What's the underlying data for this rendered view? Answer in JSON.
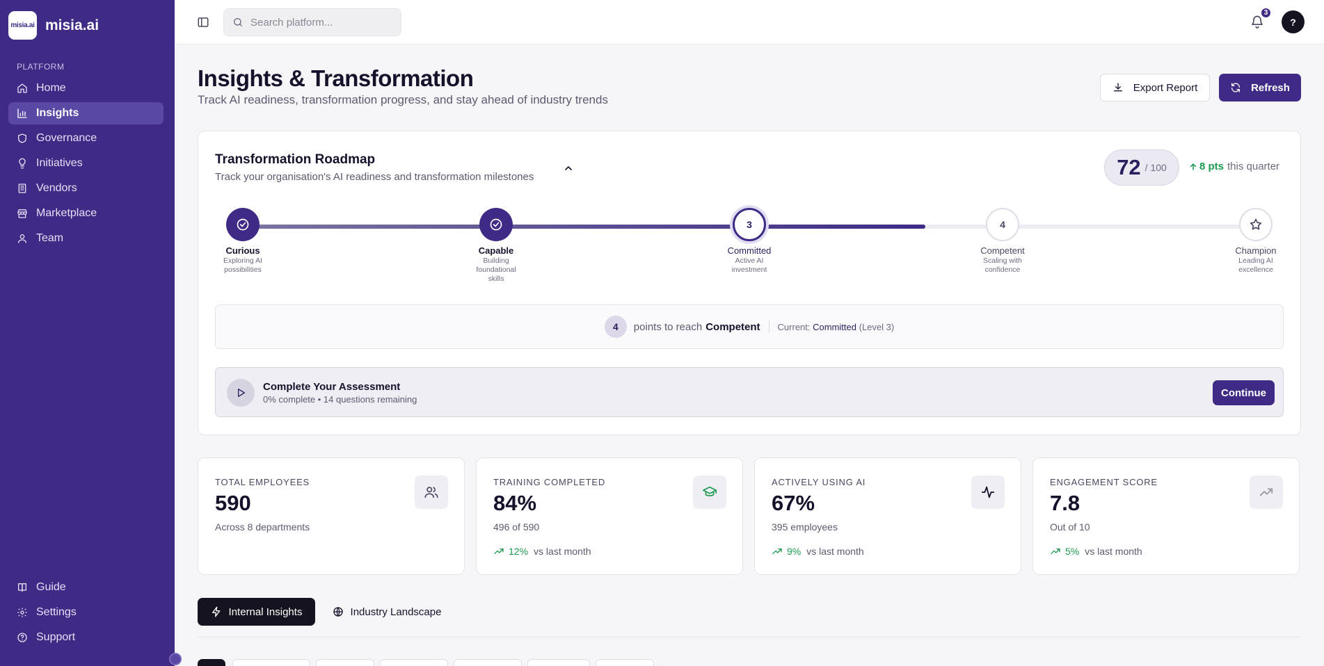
{
  "brand": {
    "logo_text": "misia.ai",
    "name": "misia.ai"
  },
  "sidebar": {
    "section": "PLATFORM",
    "items": [
      {
        "label": "Home",
        "icon": "home-icon"
      },
      {
        "label": "Insights",
        "icon": "bar-chart-icon",
        "active": true
      },
      {
        "label": "Governance",
        "icon": "shield-icon"
      },
      {
        "label": "Initiatives",
        "icon": "lightbulb-icon"
      },
      {
        "label": "Vendors",
        "icon": "building-icon"
      },
      {
        "label": "Marketplace",
        "icon": "store-icon"
      },
      {
        "label": "Team",
        "icon": "user-icon"
      }
    ],
    "bottom": [
      {
        "label": "Guide",
        "icon": "book-icon"
      },
      {
        "label": "Settings",
        "icon": "gear-icon"
      },
      {
        "label": "Support",
        "icon": "help-circle-icon"
      }
    ]
  },
  "topbar": {
    "search_placeholder": "Search platform...",
    "notification_count": "3",
    "help_label": "?"
  },
  "page": {
    "title": "Insights & Transformation",
    "subtitle": "Track AI readiness, transformation progress, and stay ahead of industry trends",
    "export_label": "Export Report",
    "refresh_label": "Refresh"
  },
  "roadmap": {
    "title": "Transformation Roadmap",
    "subtitle": "Track your organisation's AI readiness and transformation milestones",
    "score": "72",
    "score_max": "/ 100",
    "delta": "8 pts",
    "delta_suffix": "this quarter",
    "progress_fraction": 0.675,
    "stages": [
      {
        "marker": "",
        "name": "Curious",
        "desc": "Exploring AI possibilities",
        "state": "done"
      },
      {
        "marker": "",
        "name": "Capable",
        "desc": "Building foundational skills",
        "state": "done"
      },
      {
        "marker": "3",
        "name": "Committed",
        "desc": "Active AI investment",
        "state": "current"
      },
      {
        "marker": "4",
        "name": "Competent",
        "desc": "Scaling with confidence",
        "state": "todo"
      },
      {
        "marker": "",
        "name": "Champion",
        "desc": "Leading AI excellence",
        "state": "todo"
      }
    ],
    "points": {
      "count": "4",
      "text": "points to reach",
      "target": "Competent",
      "current_prefix": "Current:",
      "current_level": "Committed",
      "current_suffix": "(Level 3)"
    },
    "assessment": {
      "title": "Complete Your Assessment",
      "subtitle": "0% complete • 14 questions remaining",
      "button": "Continue"
    }
  },
  "stats": [
    {
      "label": "TOTAL EMPLOYEES",
      "value": "590",
      "sub": "Across 8 departments",
      "trend_pct": "",
      "trend_text": "",
      "icon": "users-icon",
      "icon_color": "#4a4860"
    },
    {
      "label": "TRAINING COMPLETED",
      "value": "84%",
      "sub": "496 of 590",
      "trend_pct": "12%",
      "trend_text": "vs last month",
      "icon": "graduation-cap-icon",
      "icon_color": "#1c9a4f"
    },
    {
      "label": "ACTIVELY USING AI",
      "value": "67%",
      "sub": "395 employees",
      "trend_pct": "9%",
      "trend_text": "vs last month",
      "icon": "activity-icon",
      "icon_color": "#15122b"
    },
    {
      "label": "ENGAGEMENT SCORE",
      "value": "7.8",
      "sub": "Out of 10",
      "trend_pct": "5%",
      "trend_text": "vs last month",
      "icon": "trending-up-icon",
      "icon_color": "#9b99a8"
    }
  ],
  "tabs": {
    "internal": "Internal Insights",
    "industry": "Industry Landscape"
  },
  "colors": {
    "primary": "#3f2a86",
    "accent_green": "#1c9a4f",
    "dark": "#15131f"
  }
}
